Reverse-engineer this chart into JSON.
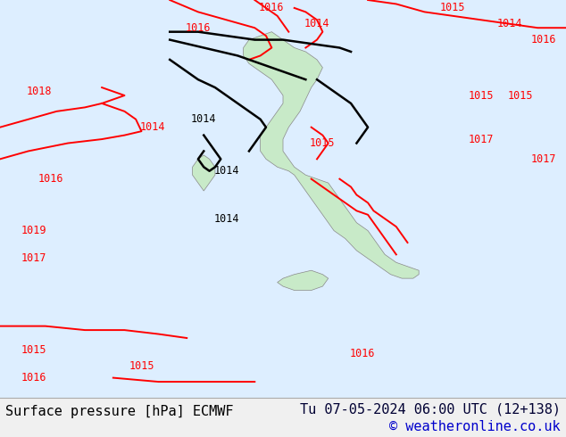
{
  "title_left": "Surface pressure [hPa] ECMWF",
  "title_right": "Tu 07-05-2024 06:00 UTC (12+138)",
  "copyright": "© weatheronline.co.uk",
  "bg_color": "#c8eac8",
  "land_color": "#c8eac8",
  "sea_color": "#ddeeff",
  "border_bottom_color": "#cccccc",
  "bottom_bar_color": "#f0f0f0",
  "text_color_left": "#000000",
  "text_color_right": "#000033",
  "copyright_color": "#0000cc",
  "isobar_color_red": "#ff0000",
  "isobar_color_black": "#000000",
  "font_size_bottom": 11,
  "fig_width": 6.34,
  "fig_height": 4.9
}
